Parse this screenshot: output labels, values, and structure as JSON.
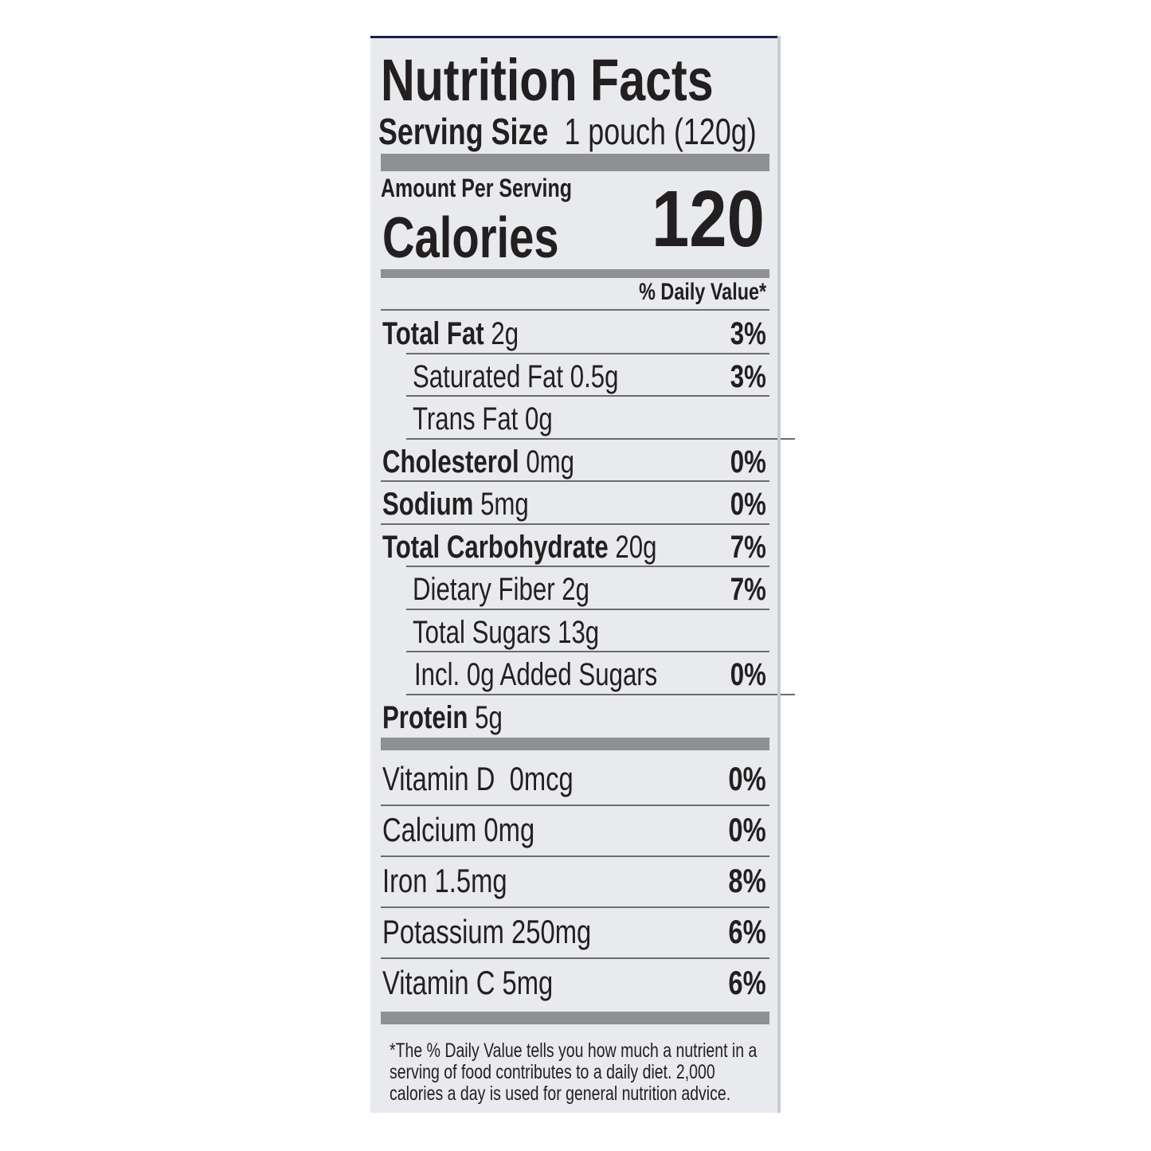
{
  "label": {
    "title": "Nutrition Facts",
    "serving_size_label": "Serving Size",
    "serving_size_value": "1 pouch (120g)",
    "amount_per_serving": "Amount Per Serving",
    "calories_label": "Calories",
    "calories_value": "120",
    "daily_value_header": "% Daily Value*",
    "nutrients": [
      {
        "name": "Total Fat",
        "amount": "2g",
        "dv": "3%"
      },
      {
        "name": "Saturated Fat",
        "amount": "0.5g",
        "dv": "3%"
      },
      {
        "name": "Trans Fat",
        "amount": "0g",
        "dv": ""
      },
      {
        "name": "Cholesterol",
        "amount": "0mg",
        "dv": "0%"
      },
      {
        "name": "Sodium",
        "amount": "5mg",
        "dv": "0%"
      },
      {
        "name": "Total Carbohydrate",
        "amount": "20g",
        "dv": "7%"
      },
      {
        "name": "Dietary Fiber",
        "amount": "2g",
        "dv": "7%"
      },
      {
        "name": "Total Sugars",
        "amount": "13g",
        "dv": ""
      },
      {
        "name": "Incl. 0g Added Sugars",
        "amount": "",
        "dv": "0%"
      },
      {
        "name": "Protein",
        "amount": "5g",
        "dv": ""
      }
    ],
    "vitamins": [
      {
        "name": "Vitamin D",
        "amount": "0mcg",
        "dv": "0%"
      },
      {
        "name": "Calcium",
        "amount": "0mg",
        "dv": "0%"
      },
      {
        "name": "Iron",
        "amount": "1.5mg",
        "dv": "8%"
      },
      {
        "name": "Potassium",
        "amount": "250mg",
        "dv": "6%"
      },
      {
        "name": "Vitamin C",
        "amount": "5mg",
        "dv": "6%"
      }
    ],
    "footnote": "*The % Daily Value tells you how much a nutrient in a serving of food contributes to a daily diet. 2,000 calories a day is used for general nutrition advice."
  }
}
